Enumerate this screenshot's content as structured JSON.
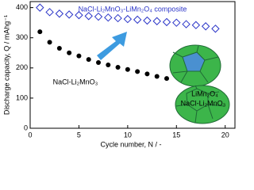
{
  "chart_data": {
    "type": "scatter",
    "x_label": "Cycle number, N / -",
    "y_label": "Discharge capacity, Q / mAhg⁻¹",
    "annotations": [
      "NaCl-Li₂MnO₃-LiMn₂O₄ composite",
      "NaCl-Li₂MnO₃",
      "LiMn₂O₄",
      "NaCl-Li₂MnO₃"
    ],
    "xlim": [
      0,
      21
    ],
    "xticks": [
      0,
      5,
      10,
      15,
      20
    ],
    "ylim": [
      0,
      420
    ],
    "yticks": [
      0,
      100,
      200,
      300,
      400
    ],
    "series": [
      {
        "name": "NaCl-Li₂MnO₃-LiMn₂O₄ composite",
        "color": "#2b35c8",
        "marker": "diamond",
        "x": [
          1,
          2,
          3,
          4,
          5,
          6,
          7,
          8,
          9,
          10,
          11,
          12,
          13,
          14,
          15,
          16,
          17,
          18,
          19
        ],
        "values": [
          400,
          385,
          380,
          377,
          375,
          372,
          370,
          367,
          365,
          362,
          360,
          357,
          355,
          352,
          350,
          345,
          342,
          338,
          330
        ]
      },
      {
        "name": "NaCl-Li₂MnO₃",
        "color": "#000000",
        "marker": "circle",
        "x": [
          1,
          2,
          3,
          4,
          5,
          6,
          7,
          8,
          9,
          10,
          11,
          12,
          13,
          14
        ],
        "values": [
          320,
          285,
          265,
          250,
          240,
          228,
          218,
          210,
          202,
          195,
          188,
          180,
          172,
          165
        ]
      }
    ]
  }
}
